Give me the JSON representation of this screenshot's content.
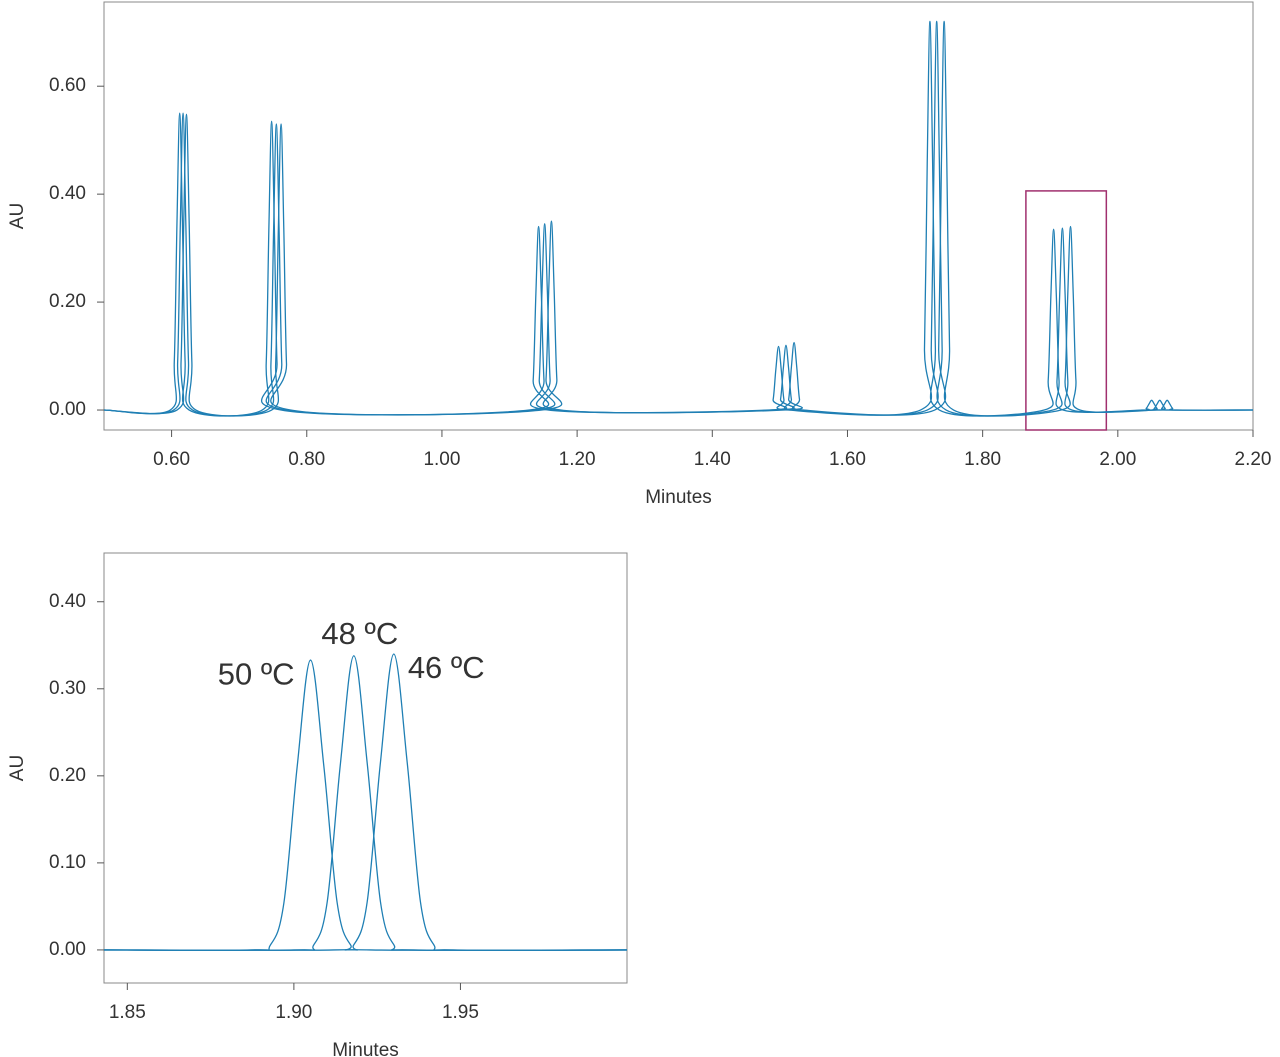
{
  "chart_data": [
    {
      "type": "line",
      "x_label": "Minutes",
      "y_label": "AU",
      "xlim": [
        0.5,
        2.2
      ],
      "ylim": [
        -0.037,
        0.756
      ],
      "xticks": [
        {
          "value": 0.6,
          "label": "0.60"
        },
        {
          "value": 0.8,
          "label": "0.80"
        },
        {
          "value": 1.0,
          "label": "1.00"
        },
        {
          "value": 1.2,
          "label": "1.20"
        },
        {
          "value": 1.4,
          "label": "1.40"
        },
        {
          "value": 1.6,
          "label": "1.60"
        },
        {
          "value": 1.8,
          "label": "1.80"
        },
        {
          "value": 2.0,
          "label": "2.00"
        },
        {
          "value": 2.2,
          "label": "2.20"
        }
      ],
      "yticks": [
        {
          "value": 0,
          "label": "0.00"
        },
        {
          "value": 0.2,
          "label": "0.20"
        },
        {
          "value": 0.4,
          "label": "0.40"
        },
        {
          "value": 0.6,
          "label": "0.60"
        }
      ],
      "highlight": {
        "x": [
          1.864,
          1.983
        ],
        "y": [
          -0.037,
          0.406
        ],
        "color": "#a0306e"
      },
      "series": [
        {
          "color": "#1f7fb4",
          "x": [
            0.5,
            0.598,
            0.604,
            0.608,
            0.612,
            0.616,
            0.62,
            0.626,
            0.734,
            0.74,
            0.744,
            0.748,
            0.752,
            0.756,
            0.762,
            1.129,
            1.135,
            1.139,
            1.143,
            1.147,
            1.151,
            1.157,
            1.484,
            1.49,
            1.494,
            1.498,
            1.502,
            1.506,
            1.512,
            1.708,
            1.714,
            1.718,
            1.722,
            1.726,
            1.73,
            1.736,
            1.891,
            1.897,
            1.901,
            1.905,
            1.909,
            1.913,
            1.919,
            2.036,
            2.042,
            2.046,
            2.05,
            2.054,
            2.058,
            2.064,
            2.2
          ],
          "values": [
            0,
            0,
            0.09,
            0.349,
            0.55,
            0.349,
            0.09,
            0,
            0,
            0.087,
            0.34,
            0.535,
            0.34,
            0.087,
            0,
            0,
            0.055,
            0.216,
            0.34,
            0.216,
            0.055,
            0,
            0,
            0.019,
            0.075,
            0.118,
            0.075,
            0.019,
            0,
            0,
            0.117,
            0.457,
            0.72,
            0.457,
            0.117,
            0,
            0,
            0.055,
            0.213,
            0.335,
            0.213,
            0.055,
            0,
            0,
            0.003,
            0.011,
            0.018,
            0.011,
            0.003,
            0,
            0
          ]
        },
        {
          "color": "#1f7fb4",
          "x": [
            0.5,
            0.603,
            0.609,
            0.613,
            0.617,
            0.621,
            0.625,
            0.631,
            0.741,
            0.747,
            0.751,
            0.755,
            0.759,
            0.763,
            0.769,
            1.138,
            1.144,
            1.148,
            1.152,
            1.156,
            1.16,
            1.166,
            1.495,
            1.501,
            1.505,
            1.509,
            1.513,
            1.517,
            1.523,
            1.718,
            1.724,
            1.728,
            1.732,
            1.736,
            1.74,
            1.746,
            1.904,
            1.91,
            1.914,
            1.918,
            1.922,
            1.926,
            1.932,
            2.048,
            2.054,
            2.058,
            2.062,
            2.066,
            2.07,
            2.076,
            2.2
          ],
          "values": [
            0,
            0,
            0.09,
            0.349,
            0.55,
            0.349,
            0.09,
            0,
            0,
            0.086,
            0.337,
            0.53,
            0.337,
            0.086,
            0,
            0,
            0.056,
            0.219,
            0.345,
            0.219,
            0.056,
            0,
            0,
            0.02,
            0.076,
            0.12,
            0.076,
            0.02,
            0,
            0,
            0.117,
            0.457,
            0.72,
            0.457,
            0.117,
            0,
            0,
            0.055,
            0.214,
            0.337,
            0.214,
            0.055,
            0,
            0,
            0.003,
            0.011,
            0.018,
            0.011,
            0.003,
            0,
            0
          ]
        },
        {
          "color": "#1f7fb4",
          "x": [
            0.5,
            0.608,
            0.614,
            0.618,
            0.622,
            0.626,
            0.63,
            0.636,
            0.748,
            0.754,
            0.758,
            0.762,
            0.766,
            0.77,
            0.776,
            1.148,
            1.154,
            1.158,
            1.162,
            1.166,
            1.17,
            1.176,
            1.507,
            1.513,
            1.517,
            1.521,
            1.525,
            1.529,
            1.535,
            1.729,
            1.735,
            1.739,
            1.743,
            1.747,
            1.751,
            1.757,
            1.916,
            1.922,
            1.926,
            1.93,
            1.934,
            1.938,
            1.944,
            2.059,
            2.065,
            2.069,
            2.073,
            2.077,
            2.081,
            2.087,
            2.2
          ],
          "values": [
            0,
            0,
            0.089,
            0.348,
            0.548,
            0.348,
            0.089,
            0,
            0,
            0.086,
            0.337,
            0.53,
            0.337,
            0.086,
            0,
            0,
            0.057,
            0.222,
            0.35,
            0.222,
            0.057,
            0,
            0,
            0.02,
            0.079,
            0.125,
            0.079,
            0.02,
            0,
            0,
            0.117,
            0.457,
            0.72,
            0.457,
            0.117,
            0,
            0,
            0.055,
            0.216,
            0.34,
            0.216,
            0.055,
            0,
            0,
            0.003,
            0.011,
            0.018,
            0.011,
            0.003,
            0,
            0
          ]
        }
      ]
    },
    {
      "type": "line",
      "x_label": "Minutes",
      "y_label": "AU",
      "xlim": [
        1.843,
        2.0
      ],
      "ylim": [
        -0.038,
        0.456
      ],
      "xticks": [
        1.85,
        {
          "value": 1.9,
          "label": "1.90"
        },
        1.95
      ],
      "yticks": [
        {
          "value": 0,
          "label": "0.00"
        },
        {
          "value": 0.1,
          "label": "0.10"
        },
        {
          "value": 0.2,
          "label": "0.20"
        },
        {
          "value": 0.3,
          "label": "0.30"
        },
        {
          "value": 0.4,
          "label": "0.40"
        }
      ],
      "series": [
        {
          "name": "50 ºC",
          "color": "#1f7fb4",
          "x": [
            1.843,
            1.887,
            1.893,
            1.897,
            1.901,
            1.905,
            1.909,
            1.913,
            1.917,
            1.923,
            2.0
          ],
          "values": [
            0,
            0,
            0.006,
            0.054,
            0.211,
            0.333,
            0.211,
            0.054,
            0.006,
            0,
            0
          ]
        },
        {
          "name": "48 ºC",
          "color": "#1f7fb4",
          "x": [
            1.843,
            1.9,
            1.906,
            1.91,
            1.914,
            1.918,
            1.922,
            1.926,
            1.93,
            1.936,
            2.0
          ],
          "values": [
            0,
            0,
            0.006,
            0.055,
            0.215,
            0.338,
            0.215,
            0.055,
            0.006,
            0,
            0
          ]
        },
        {
          "name": "46 ºC",
          "color": "#1f7fb4",
          "x": [
            1.843,
            1.912,
            1.918,
            1.922,
            1.926,
            1.93,
            1.934,
            1.938,
            1.942,
            1.948,
            2.0
          ],
          "values": [
            0,
            0,
            0.006,
            0.055,
            0.216,
            0.34,
            0.216,
            0.055,
            0.006,
            0,
            0
          ]
        }
      ]
    }
  ]
}
